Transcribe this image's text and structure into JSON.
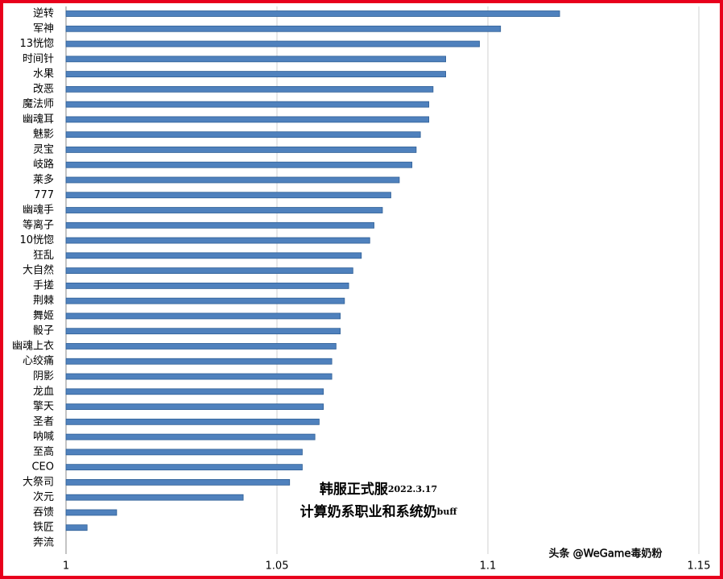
{
  "chart_data": {
    "type": "bar",
    "orientation": "horizontal",
    "categories": [
      "逆转",
      "军神",
      "13恍惚",
      "时间针",
      "水果",
      "改恶",
      "魔法师",
      "幽魂耳",
      "魅影",
      "灵宝",
      "岐路",
      "莱多",
      "777",
      "幽魂手",
      "等离子",
      "10恍惚",
      "狂乱",
      "大自然",
      "手搓",
      "荆棘",
      "舞姬",
      "骰子",
      "幽魂上衣",
      "心绞痛",
      "阴影",
      "龙血",
      "擎天",
      "圣者",
      "呐喊",
      "至高",
      "CEO",
      "大祭司",
      "次元",
      "吞馈",
      "铁匠",
      "奔流"
    ],
    "values": [
      1.117,
      1.103,
      1.098,
      1.09,
      1.09,
      1.087,
      1.086,
      1.086,
      1.084,
      1.083,
      1.082,
      1.079,
      1.077,
      1.075,
      1.073,
      1.072,
      1.07,
      1.068,
      1.067,
      1.066,
      1.065,
      1.065,
      1.064,
      1.063,
      1.063,
      1.061,
      1.061,
      1.06,
      1.059,
      1.056,
      1.056,
      1.053,
      1.042,
      1.012,
      1.005,
      1.0
    ],
    "color": "#4f81bd",
    "xlim": [
      1,
      1.15
    ],
    "xticks": [
      1,
      1.05,
      1.1,
      1.15
    ],
    "grid": true,
    "annotations": [
      [
        "韩服正式服",
        "2022.3.17"
      ],
      [
        "计算奶系职业和系统奶",
        "buff"
      ]
    ],
    "watermark": "头条 @WeGame毒奶粉"
  }
}
